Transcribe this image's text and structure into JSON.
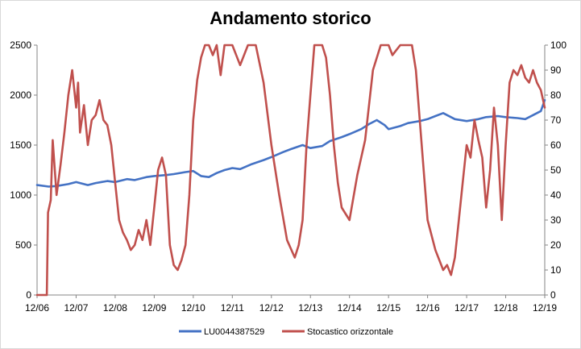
{
  "chart_data": {
    "type": "line",
    "title": "Andamento storico",
    "x_tick_labels": [
      "12/06",
      "12/07",
      "12/08",
      "12/09",
      "12/10",
      "12/11",
      "12/12",
      "12/13",
      "12/14",
      "12/15",
      "12/16",
      "12/17",
      "12/18",
      "12/19"
    ],
    "y_left": {
      "ticks": [
        0,
        500,
        1000,
        1500,
        2000,
        2500
      ],
      "ylim": [
        0,
        2500
      ]
    },
    "y_right": {
      "ticks": [
        0,
        10,
        20,
        30,
        40,
        50,
        60,
        70,
        80,
        90,
        100
      ],
      "ylim": [
        0,
        100
      ]
    },
    "grid": false,
    "legend_position": "bottom",
    "series": [
      {
        "name": "LU0044387529",
        "axis": "left",
        "color": "#4472c4",
        "x": [
          0,
          0.3,
          0.5,
          0.8,
          1.0,
          1.3,
          1.5,
          1.8,
          2.0,
          2.3,
          2.5,
          2.8,
          3.0,
          3.3,
          3.5,
          3.8,
          4.0,
          4.2,
          4.4,
          4.6,
          4.8,
          5.0,
          5.2,
          5.5,
          5.8,
          6.0,
          6.3,
          6.5,
          6.8,
          7.0,
          7.3,
          7.5,
          7.8,
          8.0,
          8.3,
          8.5,
          8.7,
          8.9,
          9.0,
          9.3,
          9.5,
          9.8,
          10.0,
          10.2,
          10.4,
          10.5,
          10.7,
          11.0,
          11.3,
          11.5,
          11.8,
          12.0,
          12.3,
          12.5,
          12.7,
          12.9,
          13.0
        ],
        "values": [
          1100,
          1085,
          1090,
          1110,
          1130,
          1100,
          1120,
          1140,
          1130,
          1160,
          1150,
          1180,
          1190,
          1200,
          1210,
          1230,
          1240,
          1190,
          1180,
          1220,
          1250,
          1270,
          1260,
          1310,
          1350,
          1380,
          1430,
          1460,
          1500,
          1470,
          1490,
          1540,
          1580,
          1610,
          1660,
          1710,
          1750,
          1700,
          1660,
          1690,
          1720,
          1740,
          1760,
          1790,
          1820,
          1800,
          1760,
          1740,
          1760,
          1780,
          1790,
          1780,
          1770,
          1760,
          1800,
          1840,
          1950
        ]
      },
      {
        "name": "Stocastico orizzontale",
        "axis": "right",
        "color": "#c0504d",
        "x": [
          0,
          0.2,
          0.25,
          0.28,
          0.35,
          0.4,
          0.5,
          0.6,
          0.7,
          0.8,
          0.9,
          1.0,
          1.05,
          1.1,
          1.2,
          1.3,
          1.4,
          1.5,
          1.6,
          1.7,
          1.8,
          1.9,
          2.0,
          2.1,
          2.2,
          2.3,
          2.4,
          2.5,
          2.6,
          2.7,
          2.8,
          2.9,
          3.0,
          3.1,
          3.2,
          3.3,
          3.4,
          3.5,
          3.6,
          3.7,
          3.8,
          3.9,
          4.0,
          4.1,
          4.2,
          4.3,
          4.4,
          4.5,
          4.6,
          4.7,
          4.8,
          4.9,
          5.0,
          5.2,
          5.4,
          5.6,
          5.8,
          6.0,
          6.2,
          6.4,
          6.6,
          6.7,
          6.8,
          6.9,
          7.0,
          7.1,
          7.2,
          7.3,
          7.4,
          7.5,
          7.6,
          7.7,
          7.8,
          8.0,
          8.2,
          8.4,
          8.6,
          8.8,
          9.0,
          9.1,
          9.2,
          9.3,
          9.4,
          9.5,
          9.6,
          9.7,
          9.8,
          10.0,
          10.2,
          10.4,
          10.5,
          10.6,
          10.7,
          10.8,
          10.9,
          11.0,
          11.1,
          11.2,
          11.3,
          11.4,
          11.5,
          11.6,
          11.7,
          11.8,
          11.9,
          12.0,
          12.1,
          12.2,
          12.3,
          12.4,
          12.5,
          12.6,
          12.7,
          12.8,
          12.9,
          13.0
        ],
        "values": [
          0,
          0,
          0,
          33,
          38,
          62,
          40,
          52,
          65,
          80,
          90,
          75,
          85,
          65,
          76,
          60,
          70,
          72,
          78,
          70,
          68,
          60,
          45,
          30,
          25,
          22,
          18,
          20,
          26,
          22,
          30,
          20,
          35,
          50,
          55,
          48,
          20,
          12,
          10,
          14,
          20,
          40,
          70,
          86,
          95,
          100,
          100,
          96,
          100,
          88,
          100,
          100,
          100,
          92,
          100,
          100,
          85,
          60,
          40,
          22,
          15,
          20,
          30,
          60,
          80,
          100,
          100,
          100,
          95,
          80,
          60,
          45,
          35,
          30,
          48,
          62,
          90,
          100,
          100,
          96,
          98,
          100,
          100,
          100,
          100,
          90,
          70,
          30,
          18,
          10,
          12,
          8,
          15,
          30,
          45,
          60,
          55,
          70,
          62,
          55,
          35,
          50,
          75,
          60,
          30,
          60,
          85,
          90,
          88,
          92,
          87,
          85,
          90,
          85,
          82,
          75
        ]
      }
    ]
  }
}
